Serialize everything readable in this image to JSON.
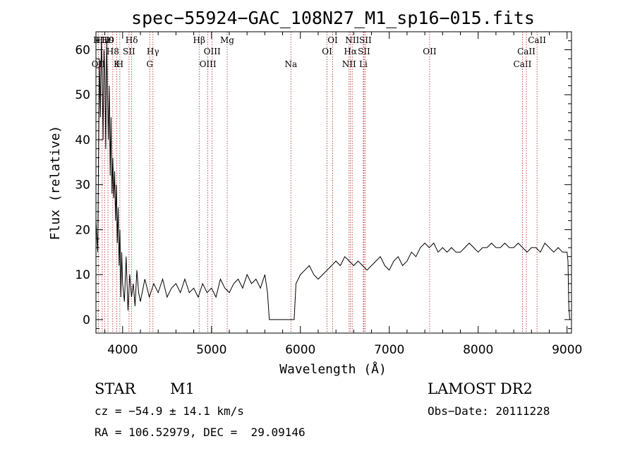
{
  "chart_data": {
    "type": "line",
    "title": "spec−55924−GAC_108N27_M1_sp16−015.fits",
    "xlabel": "Wavelength (Å)",
    "ylabel": "Flux (relative)",
    "xlim": [
      3700,
      9050
    ],
    "ylim": [
      -3,
      64
    ],
    "xticks": [
      4000,
      5000,
      6000,
      7000,
      8000,
      9000
    ],
    "yticks": [
      0,
      10,
      20,
      30,
      40,
      50,
      60
    ],
    "grid": false,
    "series": [
      {
        "x": [
          3700,
          3720,
          3740,
          3750,
          3760,
          3770,
          3780,
          3790,
          3800,
          3810,
          3820,
          3830,
          3840,
          3850,
          3860,
          3870,
          3880,
          3890,
          3900,
          3910,
          3920,
          3930,
          3940,
          3950,
          3960,
          3970,
          3980,
          3990,
          4000,
          4020,
          4040,
          4060,
          4080,
          4100,
          4120,
          4140,
          4160,
          4180,
          4200,
          4250,
          4300,
          4350,
          4400,
          4450,
          4500,
          4550,
          4600,
          4650,
          4700,
          4750,
          4800,
          4850,
          4900,
          4950,
          5000,
          5050,
          5100,
          5150,
          5200,
          5250,
          5300,
          5350,
          5400,
          5450,
          5500,
          5550,
          5600,
          5630,
          5650,
          5700,
          5800,
          5900,
          5930,
          5950,
          6000,
          6050,
          6100,
          6150,
          6200,
          6250,
          6300,
          6350,
          6400,
          6450,
          6500,
          6550,
          6600,
          6650,
          6700,
          6750,
          6800,
          6850,
          6900,
          6950,
          7000,
          7050,
          7100,
          7150,
          7200,
          7250,
          7300,
          7350,
          7400,
          7450,
          7500,
          7550,
          7600,
          7650,
          7700,
          7750,
          7800,
          7850,
          7900,
          7950,
          8000,
          8050,
          8100,
          8150,
          8200,
          8250,
          8300,
          8350,
          8400,
          8450,
          8500,
          8550,
          8600,
          8650,
          8700,
          8750,
          8800,
          8850,
          8900,
          8950,
          9000,
          9010,
          9020,
          9030
        ],
        "y": [
          22,
          15,
          58,
          45,
          62,
          55,
          40,
          60,
          55,
          38,
          62,
          50,
          40,
          52,
          32,
          45,
          28,
          36,
          27,
          33,
          22,
          30,
          17,
          25,
          12,
          20,
          5,
          15,
          8,
          4,
          14,
          2,
          10,
          5,
          8,
          3,
          11,
          6,
          4,
          9,
          5,
          8,
          6,
          9,
          5,
          7,
          8,
          6,
          9,
          6,
          7,
          5,
          8,
          6,
          7,
          5,
          9,
          7,
          6,
          8,
          9,
          7,
          10,
          8,
          9,
          7,
          10,
          6,
          0,
          0,
          0,
          0,
          0,
          8,
          10,
          11,
          12,
          10,
          9,
          10,
          11,
          12,
          13,
          12,
          14,
          13,
          12,
          13,
          12,
          11,
          12,
          13,
          14,
          12,
          11,
          13,
          14,
          12,
          13,
          15,
          14,
          16,
          17,
          16,
          17,
          15,
          16,
          15,
          16,
          15,
          15,
          16,
          17,
          16,
          15,
          16,
          16,
          17,
          16,
          16,
          17,
          16,
          16,
          17,
          16,
          15,
          16,
          16,
          15,
          17,
          16,
          15,
          16,
          15,
          15,
          13,
          3,
          0
        ]
      }
    ],
    "line_markers": [
      {
        "wl": 3727,
        "label": "OII",
        "row": 3
      },
      {
        "wl": 3770,
        "label": "H11",
        "row": 1
      },
      {
        "wl": 3798,
        "label": "H10",
        "row": 1
      },
      {
        "wl": 3835,
        "label": "H9",
        "row": 1
      },
      {
        "wl": 3889,
        "label": "H8",
        "row": 2
      },
      {
        "wl": 3934,
        "label": "K",
        "row": 3
      },
      {
        "wl": 3969,
        "label": "H",
        "row": 3
      },
      {
        "wl": 4072,
        "label": "SII",
        "row": 2
      },
      {
        "wl": 4102,
        "label": "Hδ",
        "row": 1
      },
      {
        "wl": 4305,
        "label": "G",
        "row": 3
      },
      {
        "wl": 4341,
        "label": "Hγ",
        "row": 2
      },
      {
        "wl": 4861,
        "label": "Hβ",
        "row": 1
      },
      {
        "wl": 4959,
        "label": "OIII",
        "row": 3
      },
      {
        "wl": 5007,
        "label": "OIII",
        "row": 2
      },
      {
        "wl": 5176,
        "label": "Mg",
        "row": 1
      },
      {
        "wl": 5893,
        "label": "Na",
        "row": 3
      },
      {
        "wl": 6300,
        "label": "OI",
        "row": 2
      },
      {
        "wl": 6363,
        "label": "OI",
        "row": 1
      },
      {
        "wl": 6548,
        "label": "NII",
        "row": 3
      },
      {
        "wl": 6563,
        "label": "Hα",
        "row": 2
      },
      {
        "wl": 6583,
        "label": "NII",
        "row": 1
      },
      {
        "wl": 6708,
        "label": "Li",
        "row": 3
      },
      {
        "wl": 6716,
        "label": "SII",
        "row": 2
      },
      {
        "wl": 6731,
        "label": "SII",
        "row": 1
      },
      {
        "wl": 7454,
        "label": "OII",
        "row": 2
      },
      {
        "wl": 8498,
        "label": "CaII",
        "row": 3
      },
      {
        "wl": 8542,
        "label": "CaII",
        "row": 2
      },
      {
        "wl": 8662,
        "label": "CaII",
        "row": 1
      }
    ]
  },
  "info": {
    "class": "STAR",
    "subclass": "M1",
    "survey": "LAMOST DR2",
    "cz": "cz = −54.9 ± 14.1 km/s",
    "obs_date": "Obs−Date: 20111228",
    "radec": "RA = 106.52979, DEC =  29.09146"
  }
}
